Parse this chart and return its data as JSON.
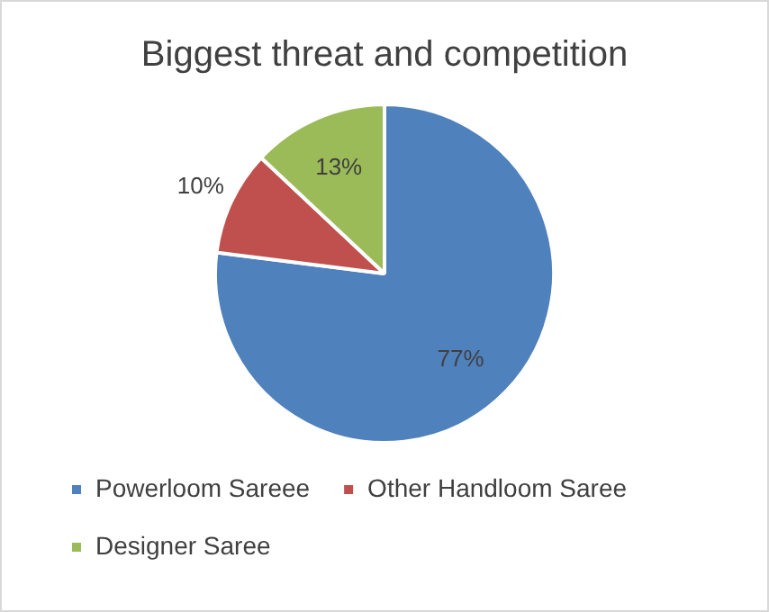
{
  "chart_data": {
    "type": "pie",
    "title": "Biggest threat and competition",
    "categories": [
      "Powerloom Sareee",
      "Other Handloom Saree",
      "Designer Saree"
    ],
    "values": [
      77,
      10,
      13
    ],
    "colors": [
      "#4f81bd",
      "#c0504d",
      "#9bbb59"
    ],
    "value_labels": [
      "77%",
      "10%",
      "13%"
    ],
    "legend": "bottom"
  }
}
